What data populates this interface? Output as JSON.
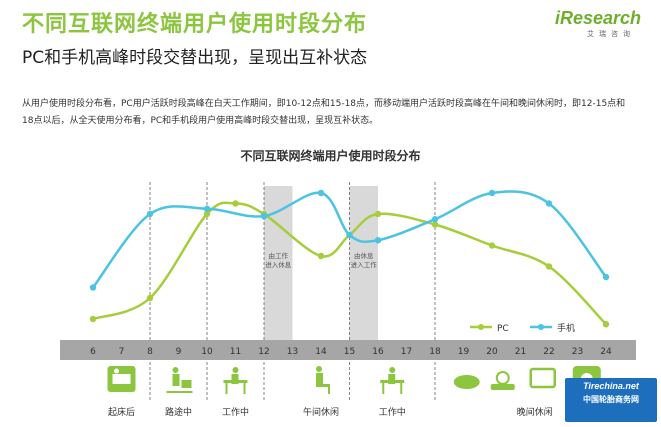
{
  "page": {
    "title": "不同互联网终端用户使用时段分布",
    "subtitle": "PC和手机高峰时段交替出现，呈现出互补状态",
    "description": "从用户使用时段分布看，PC用户活跃时段高峰在白天工作期间，即10-12点和15-18点，而移动端用户活跃时段高峰在午间和晚间休闲时，即12-15点和18点以后，从全天使用分布看，PC和手机段用户使用高峰时段交替出现，呈现互补状态。",
    "logo_text": "iResearch",
    "logo_sub": "艾瑞咨询",
    "watermark_top": "Tirechina.net",
    "watermark_bottom": "中国轮胎商务网"
  },
  "chart_data": {
    "type": "line",
    "title": "不同互联网终端用户使用时段分布",
    "x": [
      6,
      7,
      8,
      9,
      10,
      11,
      12,
      13,
      14,
      15,
      16,
      17,
      18,
      19,
      20,
      21,
      22,
      23,
      24
    ],
    "series": [
      {
        "name": "PC",
        "color": "#a6cd3a",
        "x": [
          6,
          8,
          10,
          11,
          12,
          14,
          15,
          16,
          18,
          20,
          22,
          24
        ],
        "values": [
          2,
          4,
          12,
          13,
          12,
          8,
          10,
          12,
          11,
          9,
          7,
          1.5
        ]
      },
      {
        "name": "手机",
        "color": "#4bc3e3",
        "x": [
          6,
          8,
          10,
          12,
          14,
          15,
          16,
          18,
          20,
          22,
          24
        ],
        "values": [
          5,
          12,
          12.5,
          11.8,
          14,
          10,
          9.5,
          11.5,
          14,
          13,
          6
        ]
      }
    ],
    "ylim": [
      0,
      16
    ],
    "legend_position": "bottom-right",
    "annotations": [
      {
        "label": "由工作\n进入休息",
        "x_from": 12,
        "x_to": 13
      },
      {
        "label": "由休息\n进入工作",
        "x_from": 15,
        "x_to": 16
      }
    ],
    "time_periods": [
      {
        "label": "起床后",
        "icon": "wake-up-icon",
        "x": 7
      },
      {
        "label": "路途中",
        "icon": "commute-icon",
        "x": 9
      },
      {
        "label": "工作中",
        "icon": "work-icon",
        "x": 11
      },
      {
        "label": "午间休闲",
        "icon": "lunch-rest-icon",
        "x": 14
      },
      {
        "label": "工作中",
        "icon": "work-icon",
        "x": 16.5
      },
      {
        "label": "晚间休闲",
        "icon": "evening-leisure-icon",
        "x": 21.5
      }
    ],
    "dashed_markers": [
      8,
      10,
      12,
      15,
      18
    ]
  }
}
